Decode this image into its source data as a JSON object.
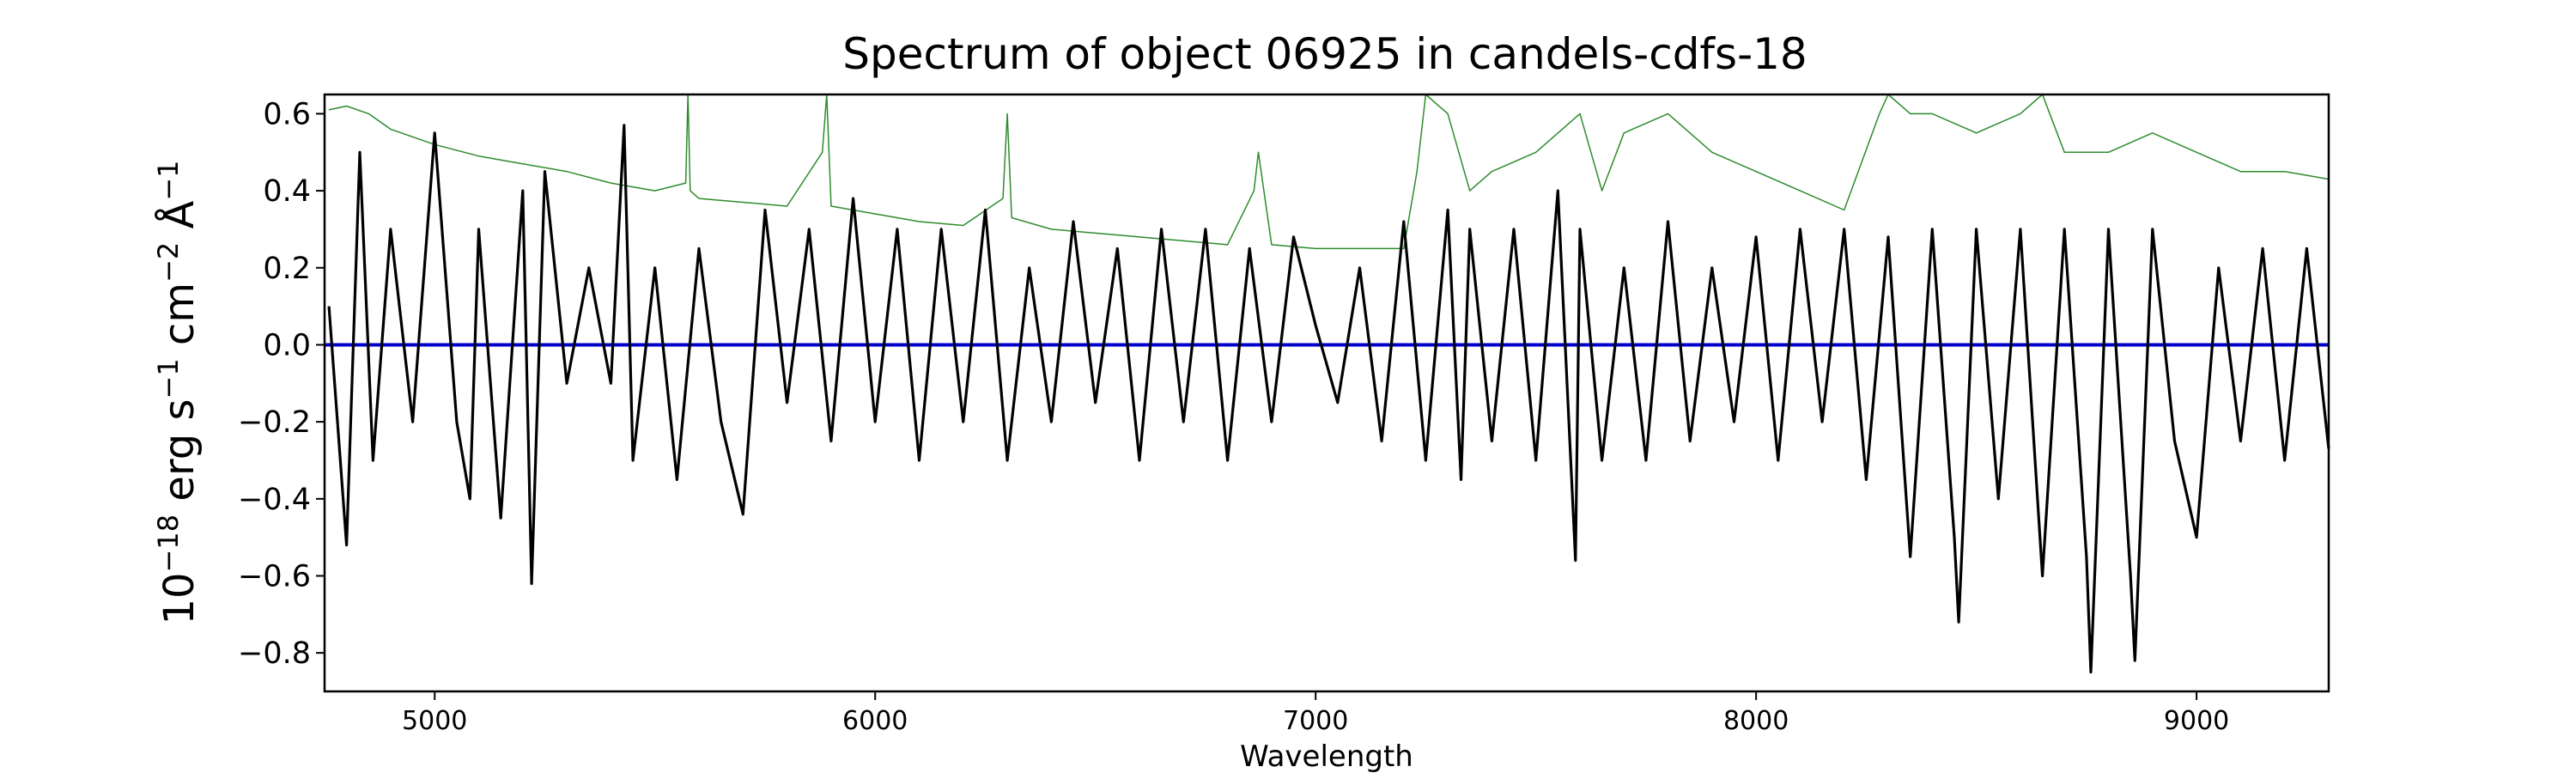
{
  "chart_data": {
    "type": "line",
    "title": "Spectrum of object 06925 in candels-cdfs-18",
    "xlabel": "Wavelength",
    "ylabel": "10−18 erg s−1 cm−2 Å−1",
    "ylabel_parts": {
      "base": "10",
      "exp1": "−18",
      "unit1": " erg s",
      "exp2": "−1",
      "unit2": " cm",
      "exp3": "−2",
      "unit3": " Å",
      "exp4": "−1"
    },
    "xlim": [
      4750,
      9300
    ],
    "ylim": [
      -0.9,
      0.65
    ],
    "xticks": [
      5000,
      6000,
      7000,
      8000,
      9000
    ],
    "xtick_labels": [
      "5000",
      "6000",
      "7000",
      "8000",
      "9000"
    ],
    "yticks": [
      -0.8,
      -0.6,
      -0.4,
      -0.2,
      0.0,
      0.2,
      0.4,
      0.6
    ],
    "ytick_labels": [
      "−0.8",
      "−0.6",
      "−0.4",
      "−0.2",
      "0.0",
      "0.2",
      "0.4",
      "0.6"
    ],
    "grid": false,
    "series": [
      {
        "role": "noise",
        "color": "#2e8b2e",
        "x": [
          4760,
          4800,
          4850,
          4900,
          5000,
          5100,
          5200,
          5300,
          5400,
          5500,
          5570,
          5575,
          5580,
          5600,
          5700,
          5800,
          5880,
          5890,
          5900,
          6000,
          6100,
          6200,
          6290,
          6300,
          6310,
          6400,
          6500,
          6600,
          6700,
          6800,
          6860,
          6870,
          6900,
          7000,
          7100,
          7200,
          7230,
          7250,
          7300,
          7350,
          7400,
          7500,
          7600,
          7650,
          7700,
          7800,
          7900,
          8000,
          8100,
          8200,
          8280,
          8300,
          8350,
          8400,
          8500,
          8600,
          8650,
          8700,
          8800,
          8900,
          9000,
          9100,
          9200,
          9300
        ],
        "values": [
          0.61,
          0.62,
          0.6,
          0.56,
          0.52,
          0.49,
          0.47,
          0.45,
          0.42,
          0.4,
          0.42,
          0.65,
          0.4,
          0.38,
          0.37,
          0.36,
          0.5,
          0.65,
          0.36,
          0.34,
          0.32,
          0.31,
          0.38,
          0.6,
          0.33,
          0.3,
          0.29,
          0.28,
          0.27,
          0.26,
          0.4,
          0.5,
          0.26,
          0.25,
          0.25,
          0.25,
          0.45,
          0.65,
          0.6,
          0.4,
          0.45,
          0.5,
          0.6,
          0.4,
          0.55,
          0.6,
          0.5,
          0.45,
          0.4,
          0.35,
          0.6,
          0.65,
          0.6,
          0.6,
          0.55,
          0.6,
          0.65,
          0.5,
          0.5,
          0.55,
          0.5,
          0.45,
          0.45,
          0.43
        ]
      },
      {
        "role": "model",
        "color": "#0000cc",
        "x": [
          4750,
          9300
        ],
        "values": [
          0.0,
          0.0
        ]
      },
      {
        "role": "flux",
        "color": "#000000",
        "x": [
          4760,
          4800,
          4830,
          4860,
          4900,
          4950,
          5000,
          5050,
          5080,
          5100,
          5150,
          5200,
          5220,
          5250,
          5300,
          5350,
          5400,
          5430,
          5450,
          5500,
          5550,
          5600,
          5650,
          5700,
          5750,
          5800,
          5850,
          5900,
          5950,
          6000,
          6050,
          6100,
          6150,
          6200,
          6250,
          6300,
          6350,
          6400,
          6450,
          6500,
          6550,
          6600,
          6650,
          6700,
          6750,
          6800,
          6850,
          6900,
          6950,
          7000,
          7050,
          7100,
          7150,
          7200,
          7250,
          7300,
          7330,
          7350,
          7400,
          7450,
          7500,
          7550,
          7590,
          7600,
          7650,
          7700,
          7750,
          7800,
          7850,
          7900,
          7950,
          8000,
          8050,
          8100,
          8150,
          8200,
          8250,
          8300,
          8350,
          8400,
          8450,
          8460,
          8500,
          8550,
          8600,
          8650,
          8700,
          8750,
          8760,
          8800,
          8850,
          8860,
          8900,
          8950,
          9000,
          9050,
          9100,
          9150,
          9200,
          9250,
          9300
        ],
        "values": [
          0.1,
          -0.52,
          0.5,
          -0.3,
          0.3,
          -0.2,
          0.55,
          -0.2,
          -0.4,
          0.3,
          -0.45,
          0.4,
          -0.62,
          0.45,
          -0.1,
          0.2,
          -0.1,
          0.57,
          -0.3,
          0.2,
          -0.35,
          0.25,
          -0.2,
          -0.44,
          0.35,
          -0.15,
          0.3,
          -0.25,
          0.38,
          -0.2,
          0.3,
          -0.3,
          0.3,
          -0.2,
          0.35,
          -0.3,
          0.2,
          -0.2,
          0.32,
          -0.15,
          0.25,
          -0.3,
          0.3,
          -0.2,
          0.3,
          -0.3,
          0.25,
          -0.2,
          0.28,
          0.05,
          -0.15,
          0.2,
          -0.25,
          0.32,
          -0.3,
          0.35,
          -0.35,
          0.3,
          -0.25,
          0.3,
          -0.3,
          0.4,
          -0.56,
          0.3,
          -0.3,
          0.2,
          -0.3,
          0.32,
          -0.25,
          0.2,
          -0.2,
          0.28,
          -0.3,
          0.3,
          -0.2,
          0.3,
          -0.35,
          0.28,
          -0.55,
          0.3,
          -0.5,
          -0.72,
          0.3,
          -0.4,
          0.3,
          -0.6,
          0.3,
          -0.55,
          -0.85,
          0.3,
          -0.6,
          -0.82,
          0.3,
          -0.25,
          -0.5,
          0.2,
          -0.25,
          0.25,
          -0.3,
          0.25,
          -0.27
        ]
      }
    ]
  }
}
